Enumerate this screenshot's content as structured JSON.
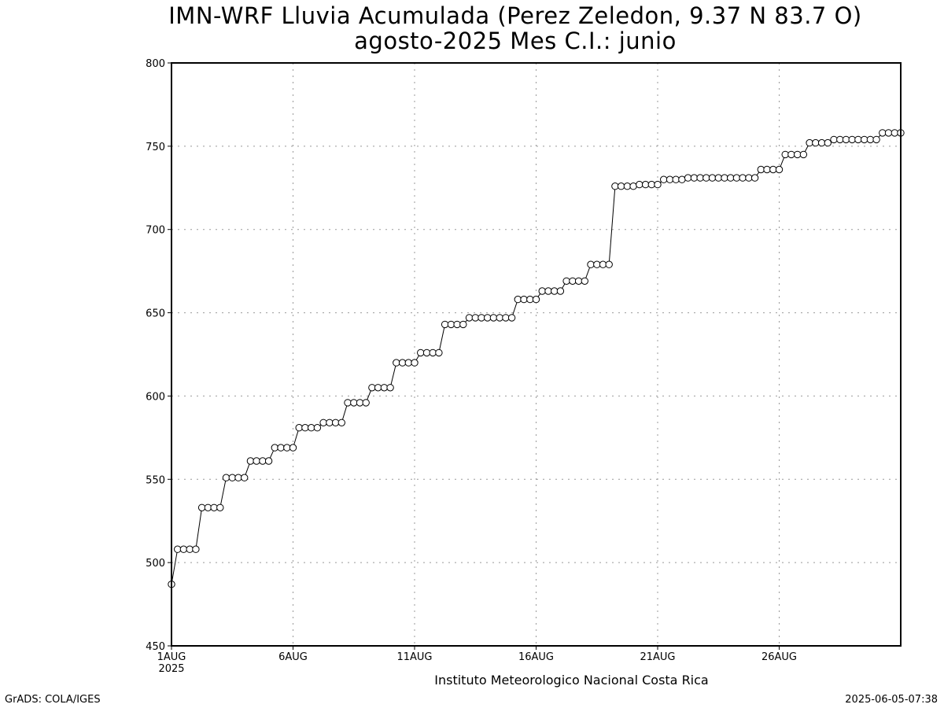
{
  "page": {
    "title_line1": "IMN-WRF  Lluvia Acumulada (Perez Zeledon, 9.37  N 83.7  O)",
    "title_line2": "agosto-2025 Mes C.I.: junio",
    "credit_left": "GrADS: COLA/IGES",
    "credit_right": "2025-06-05-07:38",
    "xlabel": "Instituto Meteorologico Nacional Costa Rica"
  },
  "chart_data": {
    "type": "line",
    "title": "IMN-WRF  Lluvia Acumulada (Perez Zeledon, 9.37  N 83.7  O)",
    "subtitle": "agosto-2025 Mes C.I.: junio",
    "xlabel": "Instituto Meteorologico Nacional Costa Rica",
    "ylabel": "",
    "x_unit": "days since 2025-08-01 00Z (6-hourly steps)",
    "xlim": [
      0,
      30
    ],
    "ylim": [
      450,
      800
    ],
    "yticks": [
      450,
      500,
      550,
      600,
      650,
      700,
      750,
      800
    ],
    "xticks": [
      {
        "x": 0,
        "label": "1AUG",
        "sublabel": "2025"
      },
      {
        "x": 5,
        "label": "6AUG",
        "sublabel": ""
      },
      {
        "x": 10,
        "label": "11AUG",
        "sublabel": ""
      },
      {
        "x": 15,
        "label": "16AUG",
        "sublabel": ""
      },
      {
        "x": 20,
        "label": "21AUG",
        "sublabel": ""
      },
      {
        "x": 25,
        "label": "26AUG",
        "sublabel": ""
      }
    ],
    "grid": true,
    "marker": "open-circle",
    "line_color": "#000000",
    "series": [
      {
        "name": "Lluvia Acumulada",
        "values": [
          487,
          508,
          508,
          508,
          508,
          533,
          533,
          533,
          533,
          551,
          551,
          551,
          551,
          561,
          561,
          561,
          561,
          569,
          569,
          569,
          569,
          581,
          581,
          581,
          581,
          584,
          584,
          584,
          584,
          596,
          596,
          596,
          596,
          605,
          605,
          605,
          605,
          620,
          620,
          620,
          620,
          626,
          626,
          626,
          626,
          643,
          643,
          643,
          643,
          647,
          647,
          647,
          647,
          647,
          647,
          647,
          647,
          658,
          658,
          658,
          658,
          663,
          663,
          663,
          663,
          669,
          669,
          669,
          669,
          679,
          679,
          679,
          679,
          726,
          726,
          726,
          726,
          727,
          727,
          727,
          727,
          730,
          730,
          730,
          730,
          731,
          731,
          731,
          731,
          731,
          731,
          731,
          731,
          731,
          731,
          731,
          731,
          736,
          736,
          736,
          736,
          745,
          745,
          745,
          745,
          752,
          752,
          752,
          752,
          754,
          754,
          754,
          754,
          754,
          754,
          754,
          754,
          758,
          758,
          758,
          758
        ]
      }
    ]
  }
}
